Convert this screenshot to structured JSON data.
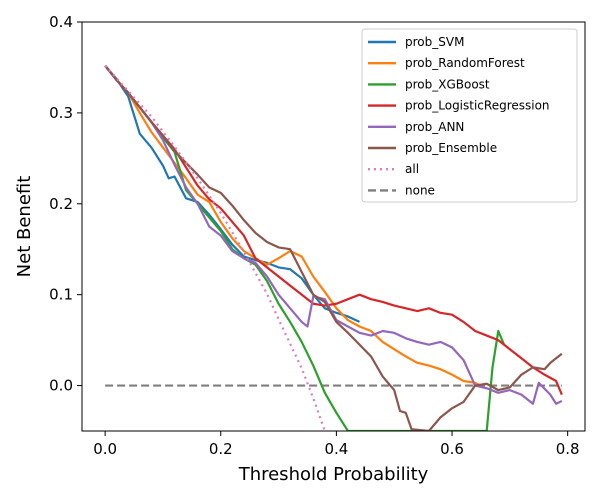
{
  "chart_data": {
    "type": "line",
    "xlabel": "Threshold Probability",
    "ylabel": "Net Benefit",
    "xlim": [
      -0.04,
      0.83
    ],
    "ylim": [
      -0.05,
      0.4
    ],
    "xticks": [
      0.0,
      0.2,
      0.4,
      0.6,
      0.8
    ],
    "xtick_labels": [
      "0.0",
      "0.2",
      "0.4",
      "0.6",
      "0.8"
    ],
    "yticks": [
      0.0,
      0.1,
      0.2,
      0.3,
      0.4
    ],
    "ytick_labels": [
      "0.0",
      "0.1",
      "0.2",
      "0.3",
      "0.4"
    ],
    "grid": false,
    "legend_position": "top-right",
    "series": [
      {
        "name": "prob_SVM",
        "color": "#1f77b4",
        "style": "solid",
        "points": [
          [
            0.0,
            0.352
          ],
          [
            0.02,
            0.337
          ],
          [
            0.04,
            0.318
          ],
          [
            0.06,
            0.277
          ],
          [
            0.08,
            0.262
          ],
          [
            0.1,
            0.242
          ],
          [
            0.11,
            0.228
          ],
          [
            0.12,
            0.23
          ],
          [
            0.14,
            0.206
          ],
          [
            0.16,
            0.202
          ],
          [
            0.18,
            0.188
          ],
          [
            0.2,
            0.172
          ],
          [
            0.22,
            0.155
          ],
          [
            0.24,
            0.142
          ],
          [
            0.26,
            0.138
          ],
          [
            0.28,
            0.135
          ],
          [
            0.3,
            0.13
          ],
          [
            0.32,
            0.128
          ],
          [
            0.34,
            0.118
          ],
          [
            0.36,
            0.1
          ],
          [
            0.38,
            0.085
          ],
          [
            0.4,
            0.08
          ],
          [
            0.42,
            0.076
          ],
          [
            0.44,
            0.07
          ]
        ]
      },
      {
        "name": "prob_RandomForest",
        "color": "#ff7f0e",
        "style": "solid",
        "points": [
          [
            0.0,
            0.352
          ],
          [
            0.02,
            0.336
          ],
          [
            0.04,
            0.322
          ],
          [
            0.06,
            0.3
          ],
          [
            0.08,
            0.279
          ],
          [
            0.1,
            0.262
          ],
          [
            0.12,
            0.245
          ],
          [
            0.14,
            0.228
          ],
          [
            0.16,
            0.21
          ],
          [
            0.18,
            0.202
          ],
          [
            0.2,
            0.18
          ],
          [
            0.22,
            0.162
          ],
          [
            0.24,
            0.148
          ],
          [
            0.26,
            0.14
          ],
          [
            0.28,
            0.133
          ],
          [
            0.3,
            0.14
          ],
          [
            0.32,
            0.148
          ],
          [
            0.34,
            0.142
          ],
          [
            0.36,
            0.12
          ],
          [
            0.38,
            0.103
          ],
          [
            0.4,
            0.085
          ],
          [
            0.42,
            0.072
          ],
          [
            0.44,
            0.065
          ],
          [
            0.46,
            0.06
          ],
          [
            0.48,
            0.048
          ],
          [
            0.5,
            0.04
          ],
          [
            0.52,
            0.032
          ],
          [
            0.54,
            0.025
          ],
          [
            0.56,
            0.022
          ],
          [
            0.58,
            0.018
          ],
          [
            0.6,
            0.012
          ],
          [
            0.62,
            0.005
          ],
          [
            0.64,
            0.003
          ],
          [
            0.65,
            0.0
          ]
        ]
      },
      {
        "name": "prob_XGBoost",
        "color": "#2ca02c",
        "style": "solid",
        "points": [
          [
            0.0,
            0.352
          ],
          [
            0.02,
            0.336
          ],
          [
            0.04,
            0.322
          ],
          [
            0.06,
            0.306
          ],
          [
            0.08,
            0.29
          ],
          [
            0.1,
            0.273
          ],
          [
            0.12,
            0.257
          ],
          [
            0.14,
            0.215
          ],
          [
            0.16,
            0.2
          ],
          [
            0.18,
            0.185
          ],
          [
            0.2,
            0.17
          ],
          [
            0.22,
            0.15
          ],
          [
            0.24,
            0.14
          ],
          [
            0.26,
            0.133
          ],
          [
            0.28,
            0.115
          ],
          [
            0.3,
            0.09
          ],
          [
            0.32,
            0.07
          ],
          [
            0.34,
            0.048
          ],
          [
            0.36,
            0.022
          ],
          [
            0.38,
            -0.008
          ],
          [
            0.4,
            -0.03
          ],
          [
            0.42,
            -0.05
          ],
          [
            0.66,
            -0.05
          ],
          [
            0.67,
            0.02
          ],
          [
            0.68,
            0.06
          ],
          [
            0.69,
            0.045
          ]
        ]
      },
      {
        "name": "prob_LogisticRegression",
        "color": "#d62728",
        "style": "solid",
        "points": [
          [
            0.0,
            0.352
          ],
          [
            0.02,
            0.336
          ],
          [
            0.04,
            0.322
          ],
          [
            0.06,
            0.306
          ],
          [
            0.08,
            0.29
          ],
          [
            0.1,
            0.275
          ],
          [
            0.12,
            0.26
          ],
          [
            0.14,
            0.24
          ],
          [
            0.16,
            0.22
          ],
          [
            0.18,
            0.205
          ],
          [
            0.2,
            0.195
          ],
          [
            0.22,
            0.18
          ],
          [
            0.24,
            0.165
          ],
          [
            0.26,
            0.14
          ],
          [
            0.28,
            0.13
          ],
          [
            0.3,
            0.12
          ],
          [
            0.32,
            0.11
          ],
          [
            0.34,
            0.1
          ],
          [
            0.36,
            0.09
          ],
          [
            0.38,
            0.088
          ],
          [
            0.4,
            0.09
          ],
          [
            0.42,
            0.095
          ],
          [
            0.44,
            0.1
          ],
          [
            0.46,
            0.095
          ],
          [
            0.48,
            0.092
          ],
          [
            0.5,
            0.088
          ],
          [
            0.52,
            0.085
          ],
          [
            0.54,
            0.082
          ],
          [
            0.56,
            0.085
          ],
          [
            0.58,
            0.08
          ],
          [
            0.6,
            0.078
          ],
          [
            0.62,
            0.07
          ],
          [
            0.64,
            0.06
          ],
          [
            0.66,
            0.055
          ],
          [
            0.68,
            0.05
          ],
          [
            0.7,
            0.04
          ],
          [
            0.72,
            0.03
          ],
          [
            0.74,
            0.02
          ],
          [
            0.76,
            0.012
          ],
          [
            0.78,
            0.005
          ],
          [
            0.79,
            -0.01
          ]
        ]
      },
      {
        "name": "prob_ANN",
        "color": "#9467bd",
        "style": "solid",
        "points": [
          [
            0.0,
            0.352
          ],
          [
            0.02,
            0.336
          ],
          [
            0.04,
            0.322
          ],
          [
            0.06,
            0.306
          ],
          [
            0.08,
            0.29
          ],
          [
            0.1,
            0.27
          ],
          [
            0.12,
            0.243
          ],
          [
            0.14,
            0.218
          ],
          [
            0.16,
            0.2
          ],
          [
            0.18,
            0.175
          ],
          [
            0.2,
            0.165
          ],
          [
            0.22,
            0.148
          ],
          [
            0.24,
            0.14
          ],
          [
            0.26,
            0.135
          ],
          [
            0.28,
            0.12
          ],
          [
            0.3,
            0.1
          ],
          [
            0.32,
            0.085
          ],
          [
            0.34,
            0.07
          ],
          [
            0.35,
            0.065
          ],
          [
            0.36,
            0.098
          ],
          [
            0.38,
            0.095
          ],
          [
            0.4,
            0.072
          ],
          [
            0.42,
            0.065
          ],
          [
            0.44,
            0.058
          ],
          [
            0.46,
            0.055
          ],
          [
            0.48,
            0.06
          ],
          [
            0.5,
            0.058
          ],
          [
            0.52,
            0.052
          ],
          [
            0.54,
            0.048
          ],
          [
            0.56,
            0.045
          ],
          [
            0.58,
            0.048
          ],
          [
            0.6,
            0.042
          ],
          [
            0.62,
            0.028
          ],
          [
            0.64,
            0.0
          ],
          [
            0.66,
            -0.003
          ],
          [
            0.68,
            -0.008
          ],
          [
            0.7,
            -0.005
          ],
          [
            0.72,
            -0.01
          ],
          [
            0.74,
            -0.02
          ],
          [
            0.75,
            0.003
          ],
          [
            0.77,
            -0.01
          ],
          [
            0.78,
            -0.02
          ],
          [
            0.79,
            -0.017
          ]
        ]
      },
      {
        "name": "prob_Ensemble",
        "color": "#8c564b",
        "style": "solid",
        "points": [
          [
            0.0,
            0.352
          ],
          [
            0.02,
            0.336
          ],
          [
            0.04,
            0.322
          ],
          [
            0.06,
            0.306
          ],
          [
            0.08,
            0.29
          ],
          [
            0.1,
            0.275
          ],
          [
            0.12,
            0.258
          ],
          [
            0.14,
            0.245
          ],
          [
            0.16,
            0.232
          ],
          [
            0.18,
            0.218
          ],
          [
            0.2,
            0.212
          ],
          [
            0.22,
            0.198
          ],
          [
            0.24,
            0.182
          ],
          [
            0.26,
            0.168
          ],
          [
            0.28,
            0.158
          ],
          [
            0.3,
            0.152
          ],
          [
            0.32,
            0.15
          ],
          [
            0.34,
            0.125
          ],
          [
            0.36,
            0.1
          ],
          [
            0.38,
            0.092
          ],
          [
            0.4,
            0.07
          ],
          [
            0.42,
            0.058
          ],
          [
            0.44,
            0.045
          ],
          [
            0.46,
            0.032
          ],
          [
            0.48,
            0.01
          ],
          [
            0.5,
            -0.005
          ],
          [
            0.51,
            -0.028
          ],
          [
            0.52,
            -0.03
          ],
          [
            0.53,
            -0.048
          ],
          [
            0.56,
            -0.05
          ],
          [
            0.58,
            -0.035
          ],
          [
            0.6,
            -0.025
          ],
          [
            0.62,
            -0.018
          ],
          [
            0.64,
            0.0
          ],
          [
            0.66,
            0.002
          ],
          [
            0.68,
            -0.005
          ],
          [
            0.7,
            -0.002
          ],
          [
            0.72,
            0.012
          ],
          [
            0.74,
            0.02
          ],
          [
            0.76,
            0.018
          ],
          [
            0.77,
            0.025
          ],
          [
            0.78,
            0.03
          ],
          [
            0.79,
            0.035
          ]
        ]
      },
      {
        "name": "all",
        "color": "#e377c2",
        "style": "dotted",
        "points": [
          [
            0.0,
            0.352
          ],
          [
            0.04,
            0.324
          ],
          [
            0.08,
            0.296
          ],
          [
            0.12,
            0.263
          ],
          [
            0.16,
            0.228
          ],
          [
            0.2,
            0.19
          ],
          [
            0.24,
            0.147
          ],
          [
            0.28,
            0.101
          ],
          [
            0.3,
            0.073
          ],
          [
            0.32,
            0.046
          ],
          [
            0.34,
            0.019
          ],
          [
            0.36,
            -0.014
          ],
          [
            0.37,
            -0.032
          ],
          [
            0.38,
            -0.05
          ]
        ]
      },
      {
        "name": "none",
        "color": "#7f7f7f",
        "style": "dashed",
        "points": [
          [
            0.0,
            0.0
          ],
          [
            0.79,
            0.0
          ]
        ]
      }
    ]
  }
}
